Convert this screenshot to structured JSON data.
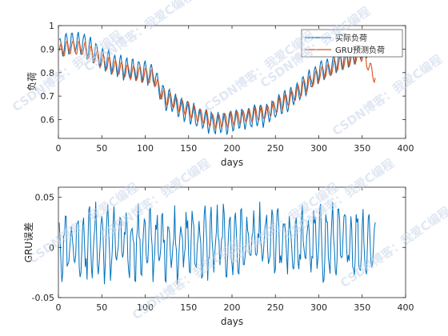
{
  "chart_data": [
    {
      "type": "line",
      "xlabel": "days",
      "ylabel": "负荷",
      "xlim": [
        0,
        400
      ],
      "ylim": [
        0.52,
        1.0
      ],
      "xticks": [
        0,
        50,
        100,
        150,
        200,
        250,
        300,
        350,
        400
      ],
      "yticks": [
        0.6,
        0.7,
        0.8,
        0.9,
        1
      ],
      "ytick_labels": [
        "0.6",
        "0.7",
        "0.8",
        "0.9",
        "1"
      ],
      "grid": false,
      "legend_position": "top-right",
      "x": [
        1,
        365
      ],
      "series": [
        {
          "name": "实际负荷",
          "color": "#0072BD",
          "mean_curve": [
            [
              0,
              0.9
            ],
            [
              15,
              0.93
            ],
            [
              30,
              0.92
            ],
            [
              50,
              0.86
            ],
            [
              75,
              0.82
            ],
            [
              100,
              0.8
            ],
            [
              110,
              0.79
            ],
            [
              120,
              0.7
            ],
            [
              150,
              0.63
            ],
            [
              180,
              0.58
            ],
            [
              210,
              0.6
            ],
            [
              240,
              0.62
            ],
            [
              270,
              0.7
            ],
            [
              300,
              0.8
            ],
            [
              330,
              0.86
            ],
            [
              350,
              0.9
            ],
            [
              365,
              0.92
            ]
          ],
          "amplitude": 0.05
        },
        {
          "name": "GRU预测负荷",
          "color": "#D95319",
          "mean_curve": [
            [
              0,
              0.89
            ],
            [
              15,
              0.91
            ],
            [
              30,
              0.9
            ],
            [
              50,
              0.85
            ],
            [
              75,
              0.81
            ],
            [
              100,
              0.79
            ],
            [
              110,
              0.78
            ],
            [
              120,
              0.7
            ],
            [
              150,
              0.64
            ],
            [
              180,
              0.59
            ],
            [
              210,
              0.61
            ],
            [
              240,
              0.63
            ],
            [
              270,
              0.7
            ],
            [
              300,
              0.79
            ],
            [
              330,
              0.85
            ],
            [
              350,
              0.88
            ],
            [
              365,
              0.78
            ]
          ],
          "amplitude": 0.03
        }
      ]
    },
    {
      "type": "line",
      "xlabel": "days",
      "ylabel": "GRU误差",
      "xlim": [
        0,
        400
      ],
      "ylim": [
        -0.05,
        0.06
      ],
      "xticks": [
        0,
        50,
        100,
        150,
        200,
        250,
        300,
        350,
        400
      ],
      "yticks": [
        -0.05,
        0,
        0.05
      ],
      "ytick_labels": [
        "-0.05",
        "0",
        "0.05"
      ],
      "grid": false,
      "x": [
        1,
        365
      ],
      "series": [
        {
          "color": "#0072BD",
          "range": [
            -0.05,
            0.06
          ]
        }
      ]
    }
  ],
  "watermark": {
    "text": "CSDN博客：我爱C编程"
  }
}
